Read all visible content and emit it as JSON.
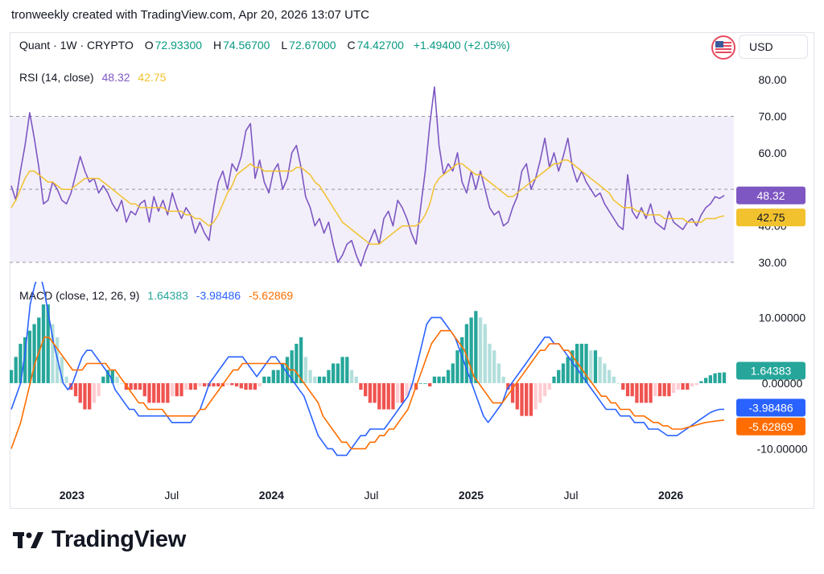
{
  "header": {
    "text": "tronweekly created with TradingView.com, Apr 20, 2026 13:07 UTC"
  },
  "symbol": {
    "name": "Quant · 1W · CRYPTO",
    "open_label": "O",
    "open": "72.93300",
    "high_label": "H",
    "high": "74.56700",
    "low_label": "L",
    "low": "72.67000",
    "close_label": "C",
    "close": "74.42700",
    "change": "+1.49400 (+2.05%)"
  },
  "currency": {
    "label": "USD"
  },
  "icons": {
    "flag": "us-flag-icon",
    "logo": "tradingview-logo-icon"
  },
  "logo": {
    "text": "TradingView"
  },
  "colors": {
    "rsi": "#7e57c2",
    "rsi_ma": "#f2c12e",
    "rsi_band": "#f2effa",
    "macd_line": "#2962ff",
    "signal_line": "#ff6d00",
    "hist_up_strong": "#26a69a",
    "hist_up_weak": "#b2dfdb",
    "hist_down_strong": "#ef5350",
    "hist_down_weak": "#ffcdd2"
  },
  "chart_data": [
    {
      "type": "line",
      "title": "RSI (14, close)",
      "legend_values": [
        "48.32",
        "42.75"
      ],
      "y_ticks": [
        "80.00",
        "70.00",
        "60.00",
        "40.00",
        "30.00"
      ],
      "ylim": [
        28,
        82
      ],
      "band": [
        30,
        70
      ],
      "midline": 50,
      "last_labels": [
        "48.32",
        "42.75"
      ],
      "last_values": [
        48.32,
        42.75
      ],
      "series": [
        {
          "values": [
            51,
            47,
            55,
            62,
            71,
            64,
            56,
            46,
            47,
            52,
            50,
            47,
            46,
            49,
            54,
            59,
            55,
            52,
            53,
            49,
            51,
            49,
            46,
            44,
            47,
            41,
            44,
            43,
            46,
            47,
            41,
            48,
            44,
            47,
            43,
            49,
            45,
            42,
            45,
            43,
            38,
            41,
            38,
            36,
            45,
            52,
            55,
            50,
            57,
            55,
            59,
            66,
            68,
            53,
            58,
            52,
            49,
            55,
            57,
            50,
            53,
            60,
            62,
            56,
            48,
            45,
            40,
            42,
            38,
            41,
            35,
            30,
            32,
            35,
            36,
            32,
            29,
            33,
            36,
            39,
            35,
            42,
            44,
            40,
            47,
            45,
            42,
            38,
            35,
            45,
            55,
            68,
            78,
            62,
            54,
            57,
            55,
            60,
            52,
            49,
            55,
            50,
            55,
            50,
            45,
            43,
            44,
            40,
            41,
            45,
            48,
            55,
            57,
            50,
            53,
            58,
            64,
            56,
            60,
            55,
            59,
            64,
            56,
            52,
            55,
            52,
            50,
            48,
            49,
            46,
            44,
            42,
            40,
            39,
            54,
            44,
            42,
            45,
            42,
            46,
            41,
            40,
            39,
            44,
            41,
            40,
            39,
            41,
            42,
            40,
            43,
            45,
            46,
            48,
            47.5,
            48.32
          ]
        },
        {
          "values": [
            45,
            47,
            50,
            53,
            55,
            55,
            54,
            53,
            52,
            52,
            51,
            50,
            50,
            50,
            51,
            52,
            53,
            53,
            53,
            53,
            52,
            51,
            50,
            49,
            48,
            47,
            46,
            46,
            45,
            45,
            45,
            45,
            45,
            45,
            44,
            44,
            44,
            44,
            43,
            43,
            42,
            42,
            41,
            40,
            41,
            43,
            46,
            49,
            51,
            54,
            55,
            56,
            57,
            56,
            56,
            55,
            55,
            55,
            55,
            55,
            55,
            55,
            56,
            56,
            55,
            54,
            52,
            51,
            49,
            47,
            45,
            43,
            41,
            40,
            39,
            38,
            37,
            36,
            35,
            35,
            35,
            36,
            37,
            38,
            39,
            40,
            40,
            40,
            40,
            41,
            43,
            46,
            51,
            53,
            54,
            55,
            56,
            57,
            57,
            56,
            55,
            54,
            54,
            53,
            52,
            51,
            50,
            49,
            48,
            48,
            49,
            50,
            51,
            52,
            53,
            54,
            55,
            56,
            57,
            57,
            58,
            58,
            57,
            56,
            55,
            54,
            53,
            52,
            51,
            50,
            49,
            47,
            46,
            45,
            45,
            45,
            44,
            44,
            43,
            43,
            43,
            43,
            42,
            42,
            42,
            42,
            42,
            41,
            41,
            41,
            41,
            42,
            42,
            42,
            42.5,
            42.75
          ]
        }
      ]
    },
    {
      "type": "bar",
      "title": "MACD (close, 12, 26, 9)",
      "legend_values": [
        "1.64383",
        "-3.98486",
        "-5.62869"
      ],
      "y_ticks": [
        "10.00000",
        "0.00000",
        "-10.00000"
      ],
      "ylim": [
        -14,
        13
      ],
      "last_labels": [
        "1.64383",
        "-3.98486",
        "-5.62869"
      ],
      "last_values": [
        1.64383,
        -3.98486,
        -5.62869
      ],
      "histogram": [
        2,
        4,
        6,
        7,
        8,
        9,
        10,
        12,
        12,
        9,
        7,
        4,
        1,
        -1,
        -2,
        -3,
        -4,
        -4,
        -3,
        -2,
        1,
        2,
        2,
        1,
        0,
        -1,
        -1,
        -1,
        -1,
        -2,
        -3,
        -3,
        -3,
        -3,
        -3,
        -2,
        -2,
        -2,
        -1,
        -1,
        -1,
        -0.5,
        -0.5,
        -0.5,
        -0.5,
        -0.5,
        -0.5,
        -0.3,
        -0.3,
        -0.5,
        -0.8,
        -1,
        -1,
        -1,
        -0.5,
        1,
        1,
        2,
        2,
        3,
        4,
        5,
        6,
        7,
        4,
        2,
        1,
        1,
        1,
        2,
        3,
        3,
        4,
        4,
        2,
        1,
        -1,
        -2,
        -3,
        -3,
        -4,
        -4,
        -4,
        -4,
        -3,
        -3,
        -2,
        -1,
        -1,
        0,
        0,
        -0.5,
        1,
        1,
        1,
        2,
        3,
        5,
        7,
        9,
        10,
        11,
        10,
        9,
        6,
        5,
        3,
        1,
        -1,
        -3,
        -4,
        -5,
        -5,
        -5,
        -4,
        -3,
        -2,
        -1,
        1,
        2,
        3,
        4,
        5,
        6,
        6,
        6,
        5,
        5,
        4,
        3,
        2,
        1,
        0,
        -1,
        -2,
        -2,
        -3,
        -3,
        -3,
        -3,
        -2,
        -2,
        -2,
        -2,
        -1.5,
        -1,
        -1,
        -1,
        -0.5,
        -0.3,
        0.3,
        0.8,
        1.2,
        1.5,
        1.6,
        1.64
      ],
      "series": [
        {
          "values": [
            -4,
            -2,
            0,
            5,
            12,
            15,
            17,
            14,
            10,
            6,
            3,
            0,
            -1,
            0,
            2,
            4,
            5,
            5,
            4,
            3,
            2,
            1,
            -1,
            -2,
            -3,
            -4,
            -4,
            -5,
            -5,
            -5,
            -5,
            -5,
            -5,
            -5,
            -6,
            -6,
            -6,
            -6,
            -6,
            -5,
            -4,
            -2,
            0,
            1,
            2,
            3,
            4,
            4,
            4,
            4,
            3,
            2,
            1,
            2,
            3,
            4,
            4,
            3,
            2,
            1,
            0,
            -1,
            -2,
            -4,
            -6,
            -8,
            -9,
            -10,
            -10,
            -11,
            -11,
            -11,
            -10,
            -9,
            -8,
            -8,
            -7,
            -7,
            -7,
            -7,
            -6,
            -5,
            -4,
            -3,
            -2,
            0,
            3,
            6,
            9,
            10,
            10,
            10,
            9,
            8,
            7,
            5,
            3,
            1,
            -1,
            -3,
            -5,
            -6,
            -5,
            -4,
            -3,
            -1,
            0,
            1,
            2,
            3,
            4,
            5,
            6,
            7,
            7,
            6,
            6,
            5,
            4,
            3,
            2,
            1,
            0,
            -1,
            -2,
            -3,
            -4,
            -4,
            -4,
            -5,
            -5,
            -5,
            -6,
            -6,
            -6,
            -7,
            -7,
            -7,
            -7.5,
            -8,
            -8,
            -8,
            -7.5,
            -7,
            -6.5,
            -6,
            -5.5,
            -5,
            -4.5,
            -4.2,
            -4.0,
            -3.98
          ]
        },
        {
          "values": [
            -10,
            -8,
            -6,
            -3,
            0,
            3,
            5,
            7,
            7,
            6,
            5,
            4,
            3,
            2,
            2,
            2,
            3,
            3,
            3,
            3,
            3,
            2,
            2,
            1,
            0,
            -1,
            -2,
            -3,
            -3,
            -4,
            -4,
            -4,
            -4,
            -5,
            -5,
            -5,
            -5,
            -5,
            -5,
            -5,
            -4,
            -4,
            -3,
            -2,
            -1,
            0,
            1,
            2,
            2,
            3,
            3,
            3,
            3,
            3,
            3,
            3,
            3,
            3,
            3,
            2,
            2,
            1,
            0,
            -1,
            -2,
            -3,
            -5,
            -6,
            -7,
            -8,
            -9,
            -9,
            -10,
            -10,
            -10,
            -10,
            -9,
            -9,
            -8,
            -8,
            -7,
            -7,
            -6,
            -5,
            -4,
            -2,
            0,
            2,
            4,
            6,
            7,
            8,
            8,
            8,
            7,
            6,
            5,
            3,
            1,
            0,
            -1,
            -2,
            -3,
            -3,
            -3,
            -2,
            -1,
            0,
            1,
            2,
            3,
            4,
            5,
            5,
            6,
            6,
            6,
            5,
            5,
            4,
            3,
            2,
            1,
            0,
            -1,
            -2,
            -2,
            -3,
            -3,
            -4,
            -4,
            -4,
            -5,
            -5,
            -5,
            -5.5,
            -6,
            -6,
            -6.5,
            -6.5,
            -7,
            -7,
            -7,
            -6.8,
            -6.6,
            -6.4,
            -6.2,
            -6,
            -5.9,
            -5.8,
            -5.7,
            -5.63
          ]
        }
      ]
    }
  ],
  "x_axis": {
    "labels": [
      {
        "text": "2023",
        "bold": true,
        "t": 0.085
      },
      {
        "text": "Jul",
        "bold": false,
        "t": 0.225
      },
      {
        "text": "2024",
        "bold": true,
        "t": 0.365
      },
      {
        "text": "Jul",
        "bold": false,
        "t": 0.505
      },
      {
        "text": "2025",
        "bold": true,
        "t": 0.645
      },
      {
        "text": "Jul",
        "bold": false,
        "t": 0.785
      },
      {
        "text": "2026",
        "bold": true,
        "t": 0.925
      }
    ]
  }
}
